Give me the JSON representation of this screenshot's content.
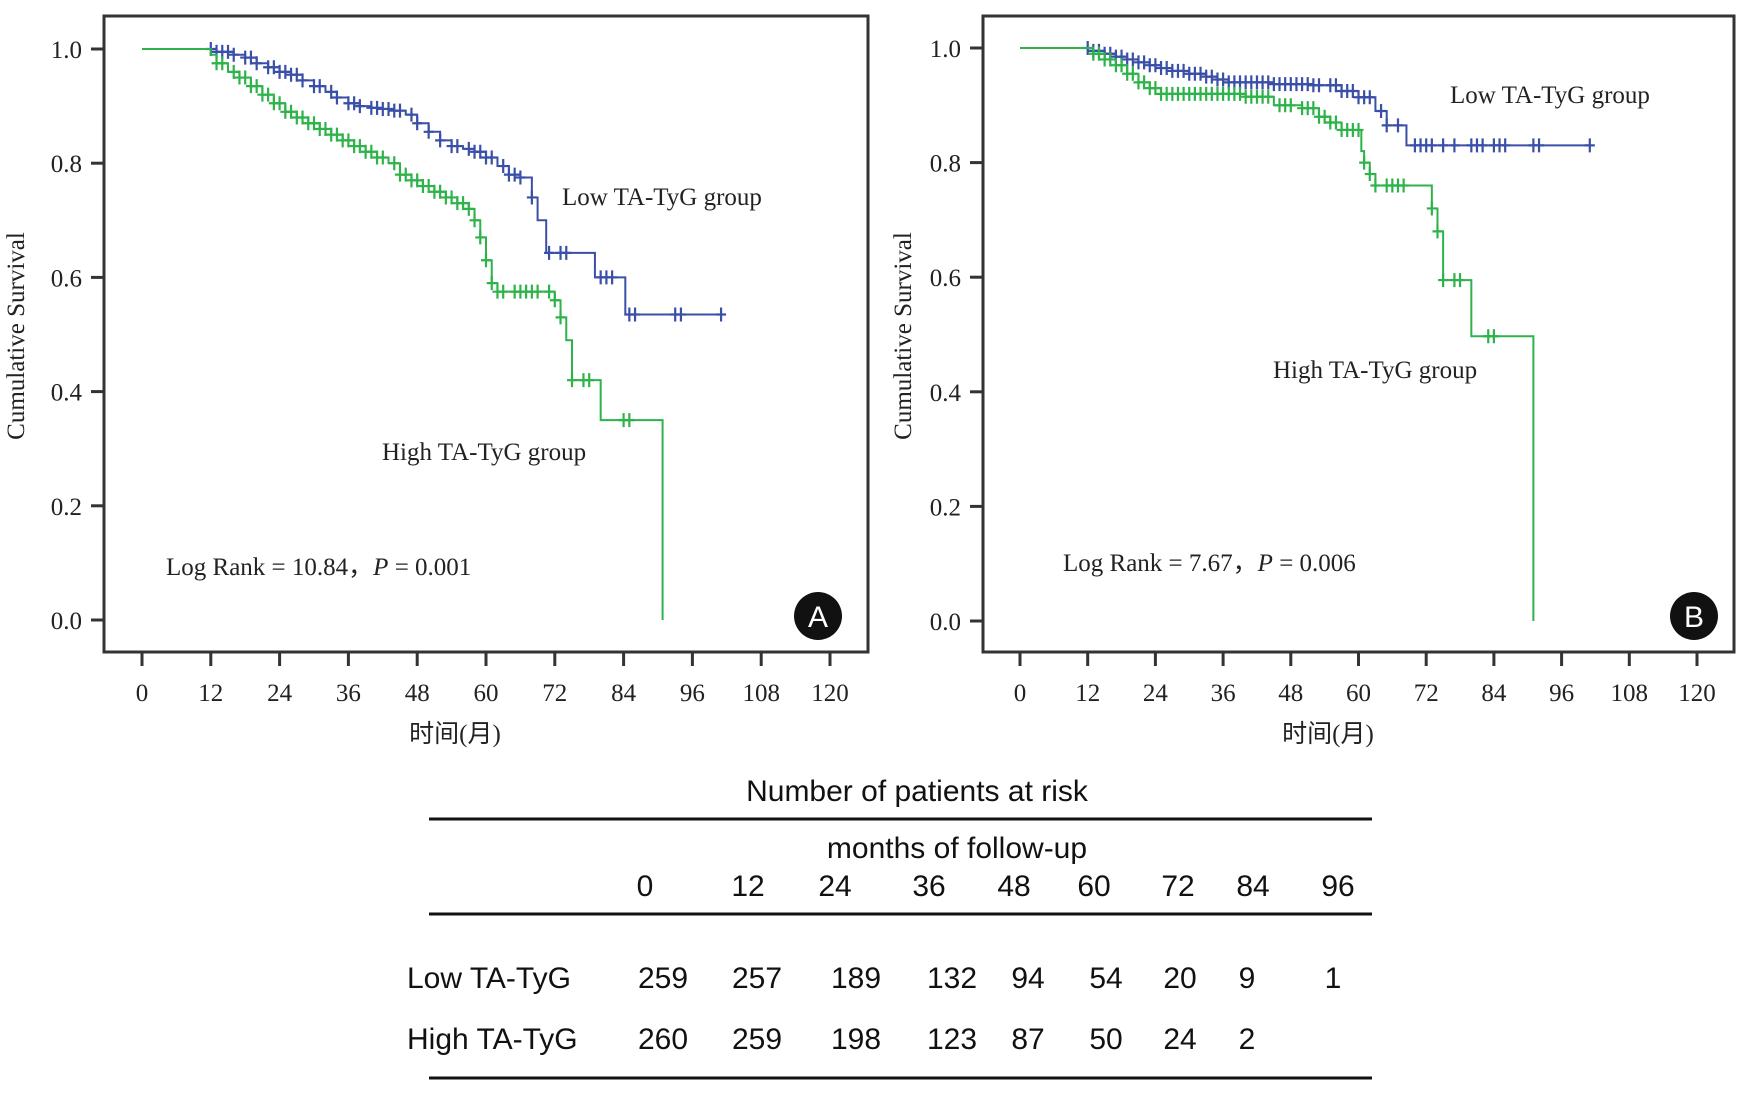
{
  "chart_data": [
    {
      "panel": "A",
      "type": "line",
      "subtype": "kaplan-meier",
      "xlabel": "时间(月)",
      "ylabel": "Cumulative Survival",
      "xlim": [
        0,
        120
      ],
      "ylim": [
        0,
        1.0
      ],
      "xticks": [
        "0",
        "12",
        "24",
        "36",
        "48",
        "60",
        "72",
        "84",
        "96",
        "108",
        "120"
      ],
      "yticks": [
        "0.0",
        "0.2",
        "0.4",
        "0.6",
        "0.8",
        "1.0"
      ],
      "annotation": "Log Rank = 10.84，",
      "annotation_p_label": "P",
      "annotation_p_value": " = 0.001",
      "badge": "A",
      "grid": false,
      "series": [
        {
          "name": "Low TA-TyG group",
          "color": "#3a4fa8",
          "steps": [
            [
              0,
              1.0
            ],
            [
              11,
              1.0
            ],
            [
              13,
              0.995
            ],
            [
              16,
              0.99
            ],
            [
              18,
              0.985
            ],
            [
              20,
              0.975
            ],
            [
              22,
              0.968
            ],
            [
              24,
              0.96
            ],
            [
              26,
              0.955
            ],
            [
              28,
              0.945
            ],
            [
              30,
              0.935
            ],
            [
              32,
              0.925
            ],
            [
              34,
              0.915
            ],
            [
              36,
              0.905
            ],
            [
              38,
              0.9
            ],
            [
              40,
              0.897
            ],
            [
              42,
              0.895
            ],
            [
              44,
              0.892
            ],
            [
              46,
              0.885
            ],
            [
              48,
              0.87
            ],
            [
              50,
              0.855
            ],
            [
              52,
              0.84
            ],
            [
              54,
              0.83
            ],
            [
              56,
              0.825
            ],
            [
              58,
              0.82
            ],
            [
              60,
              0.81
            ],
            [
              62,
              0.795
            ],
            [
              64,
              0.78
            ],
            [
              66,
              0.775
            ],
            [
              68,
              0.74
            ],
            [
              69,
              0.7
            ],
            [
              70.5,
              0.643
            ],
            [
              79,
              0.6
            ],
            [
              84.3,
              0.535
            ],
            [
              101,
              0.535
            ]
          ],
          "censor_times": [
            12,
            13,
            14,
            15,
            16,
            18,
            19,
            20,
            22,
            23,
            24,
            25,
            26,
            27,
            28,
            30,
            31,
            33,
            34,
            36,
            37,
            38,
            40,
            41,
            42,
            43,
            44,
            45,
            47,
            48,
            50,
            52,
            54,
            55,
            57,
            58,
            59,
            60,
            61,
            63,
            64,
            65,
            66,
            68,
            71,
            73,
            74,
            80,
            81,
            82,
            85,
            86,
            93,
            94,
            101
          ]
        },
        {
          "name": "High TA-TyG group",
          "color": "#2db34a",
          "steps": [
            [
              0,
              1.0
            ],
            [
              10,
              1.0
            ],
            [
              12,
              0.99
            ],
            [
              13,
              0.975
            ],
            [
              15,
              0.96
            ],
            [
              17,
              0.95
            ],
            [
              19,
              0.935
            ],
            [
              21,
              0.92
            ],
            [
              23,
              0.905
            ],
            [
              25,
              0.89
            ],
            [
              27,
              0.88
            ],
            [
              29,
              0.87
            ],
            [
              31,
              0.86
            ],
            [
              33,
              0.85
            ],
            [
              35,
              0.84
            ],
            [
              37,
              0.83
            ],
            [
              39,
              0.82
            ],
            [
              41,
              0.81
            ],
            [
              43,
              0.8
            ],
            [
              45,
              0.78
            ],
            [
              47,
              0.77
            ],
            [
              49,
              0.76
            ],
            [
              51,
              0.75
            ],
            [
              53,
              0.74
            ],
            [
              55,
              0.73
            ],
            [
              57,
              0.72
            ],
            [
              58,
              0.7
            ],
            [
              59,
              0.67
            ],
            [
              60,
              0.63
            ],
            [
              61,
              0.59
            ],
            [
              62,
              0.575
            ],
            [
              72,
              0.56
            ],
            [
              73,
              0.53
            ],
            [
              74,
              0.49
            ],
            [
              75,
              0.42
            ],
            [
              80,
              0.35
            ],
            [
              90.8,
              0.0
            ]
          ],
          "censor_times": [
            13,
            14,
            16,
            17,
            18,
            19,
            20,
            21,
            22,
            23,
            24,
            25,
            26,
            27,
            28,
            29,
            30,
            31,
            32,
            33,
            34,
            35,
            36,
            37,
            38,
            39,
            40,
            41,
            42,
            44,
            45,
            46,
            47,
            48,
            49,
            50,
            51,
            52,
            53,
            54,
            55,
            56,
            57,
            58,
            59,
            60,
            61,
            62,
            63,
            65,
            66,
            67,
            68,
            69,
            71,
            72,
            73,
            75,
            77,
            78,
            84,
            85
          ]
        }
      ],
      "labels": {
        "low": "Low TA-TyG group",
        "high": "High TA-TyG group"
      }
    },
    {
      "panel": "B",
      "type": "line",
      "subtype": "kaplan-meier",
      "xlabel": "时间(月)",
      "ylabel": "Cumulative Survival",
      "xlim": [
        0,
        120
      ],
      "ylim": [
        0,
        1.0
      ],
      "xticks": [
        "0",
        "12",
        "24",
        "36",
        "48",
        "60",
        "72",
        "84",
        "96",
        "108",
        "120"
      ],
      "yticks": [
        "0.0",
        "0.2",
        "0.4",
        "0.6",
        "0.8",
        "1.0"
      ],
      "annotation": "Log Rank = 7.67，",
      "annotation_p_label": "P",
      "annotation_p_value": " = 0.006",
      "badge": "B",
      "grid": false,
      "series": [
        {
          "name": "Low TA-TyG group",
          "color": "#3a4fa8",
          "steps": [
            [
              0,
              1.0
            ],
            [
              12,
              1.0
            ],
            [
              13,
              0.995
            ],
            [
              15,
              0.99
            ],
            [
              17,
              0.985
            ],
            [
              19,
              0.98
            ],
            [
              21,
              0.975
            ],
            [
              23,
              0.97
            ],
            [
              25,
              0.965
            ],
            [
              27,
              0.96
            ],
            [
              30,
              0.955
            ],
            [
              33,
              0.95
            ],
            [
              35,
              0.945
            ],
            [
              37,
              0.94
            ],
            [
              42,
              0.94
            ],
            [
              45,
              0.937
            ],
            [
              52,
              0.935
            ],
            [
              57,
              0.925
            ],
            [
              60,
              0.914
            ],
            [
              63,
              0.89
            ],
            [
              65,
              0.865
            ],
            [
              68.5,
              0.83
            ],
            [
              101,
              0.83
            ]
          ],
          "censor_times": [
            12,
            13,
            14,
            15,
            16,
            17,
            18,
            19,
            20,
            21,
            22,
            23,
            24,
            25,
            26,
            27,
            28,
            29,
            30,
            31,
            32,
            33,
            34,
            35,
            36,
            37,
            38,
            39,
            40,
            41,
            42,
            43,
            44,
            45,
            46,
            47,
            48,
            49,
            50,
            51,
            52,
            53,
            55,
            56,
            57,
            58,
            59,
            60,
            61,
            62,
            64,
            65,
            67,
            70,
            71,
            72,
            73,
            75,
            77,
            80,
            81,
            82,
            84,
            85,
            86,
            91,
            92,
            101
          ]
        },
        {
          "name": "High TA-TyG group",
          "color": "#2db34a",
          "steps": [
            [
              0,
              1.0
            ],
            [
              12,
              1.0
            ],
            [
              13,
              0.99
            ],
            [
              15,
              0.98
            ],
            [
              17,
              0.97
            ],
            [
              19,
              0.955
            ],
            [
              21,
              0.94
            ],
            [
              23,
              0.93
            ],
            [
              25,
              0.92
            ],
            [
              40,
              0.915
            ],
            [
              45,
              0.9
            ],
            [
              50,
              0.895
            ],
            [
              53,
              0.88
            ],
            [
              55,
              0.87
            ],
            [
              57,
              0.857
            ],
            [
              60,
              0.857
            ],
            [
              60.5,
              0.82
            ],
            [
              61,
              0.8
            ],
            [
              62,
              0.78
            ],
            [
              63,
              0.76
            ],
            [
              72,
              0.76
            ],
            [
              73,
              0.72
            ],
            [
              74,
              0.68
            ],
            [
              75,
              0.595
            ],
            [
              80,
              0.497
            ],
            [
              91,
              0.0
            ]
          ],
          "censor_times": [
            13,
            14,
            15,
            16,
            17,
            18,
            19,
            20,
            21,
            22,
            23,
            24,
            25,
            26,
            27,
            28,
            29,
            30,
            31,
            32,
            33,
            34,
            35,
            36,
            37,
            38,
            39,
            40,
            41,
            42,
            43,
            44,
            46,
            47,
            48,
            50,
            51,
            52,
            53,
            54,
            55,
            56,
            57,
            58,
            59,
            60,
            61,
            62,
            63,
            65,
            66,
            67,
            68,
            73,
            74,
            75,
            77,
            78,
            83,
            84
          ]
        }
      ],
      "labels": {
        "low": "Low TA-TyG group",
        "high": "High TA-TyG group"
      }
    }
  ],
  "risk_table": {
    "title": "Number of patients at risk",
    "subtitle": "months of follow-up",
    "months": [
      "0",
      "12",
      "24",
      "36",
      "48",
      "60",
      "72",
      "84",
      "96"
    ],
    "rows": [
      {
        "label": "Low TA-TyG",
        "values": [
          "259",
          "257",
          "189",
          "132",
          "94",
          "54",
          "20",
          "9",
          "1"
        ]
      },
      {
        "label": "High TA-TyG",
        "values": [
          "260",
          "259",
          "198",
          "123",
          "87",
          "50",
          "24",
          "2",
          ""
        ]
      }
    ]
  }
}
